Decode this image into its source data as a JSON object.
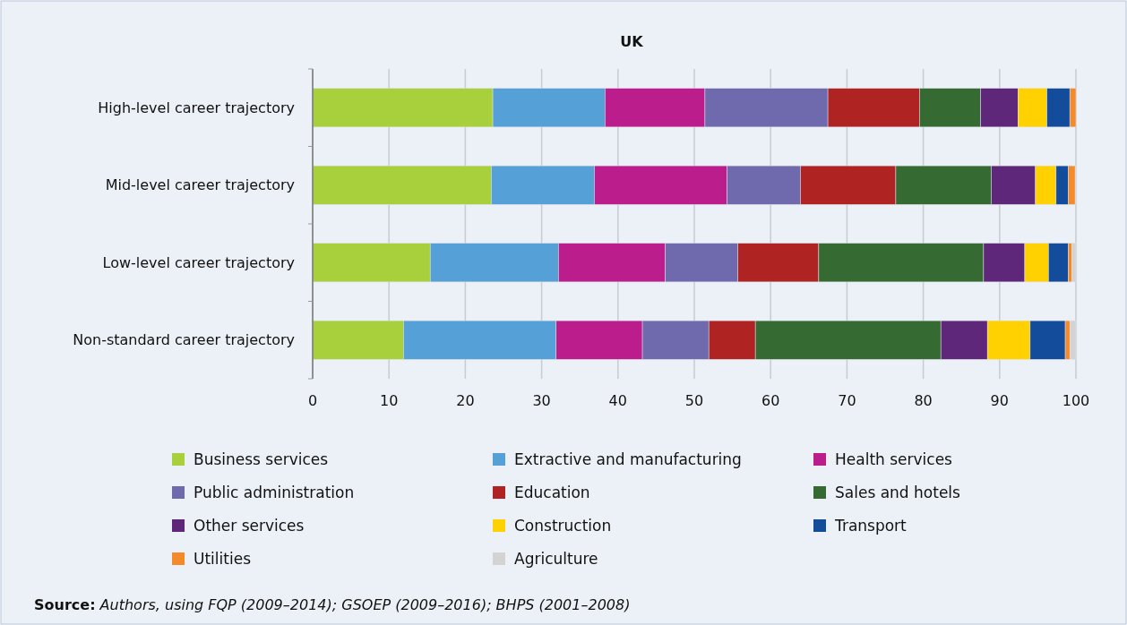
{
  "chart_data": {
    "type": "bar",
    "orientation": "horizontal",
    "stacked": true,
    "title": "UK",
    "categories": [
      "High-level career trajectory",
      "Mid-level career trajectory",
      "Low-level career trajectory",
      "Non-standard career trajectory"
    ],
    "series": [
      {
        "name": "Business services",
        "color": "#a8cf3c",
        "values": [
          23.6,
          23.4,
          15.4,
          11.9
        ]
      },
      {
        "name": "Extractive and manufacturing",
        "color": "#55a0d6",
        "values": [
          14.7,
          13.5,
          16.8,
          20.0
        ]
      },
      {
        "name": "Health services",
        "color": "#bb1e8c",
        "values": [
          13.1,
          17.4,
          14.0,
          11.3
        ]
      },
      {
        "name": "Public administration",
        "color": "#6f69ad",
        "values": [
          16.1,
          9.6,
          9.5,
          8.7
        ]
      },
      {
        "name": "Education",
        "color": "#b02323",
        "values": [
          12.0,
          12.5,
          10.6,
          6.1
        ]
      },
      {
        "name": "Sales and hotels",
        "color": "#366a33",
        "values": [
          8.0,
          12.5,
          21.6,
          24.3
        ]
      },
      {
        "name": "Other services",
        "color": "#5e2779",
        "values": [
          4.9,
          5.8,
          5.4,
          6.1
        ]
      },
      {
        "name": "Construction",
        "color": "#ffd100",
        "values": [
          3.8,
          2.7,
          3.1,
          5.6
        ]
      },
      {
        "name": "Transport",
        "color": "#124c9a",
        "values": [
          3.0,
          1.6,
          2.6,
          4.6
        ]
      },
      {
        "name": "Utilities",
        "color": "#f58a2a",
        "values": [
          0.8,
          0.9,
          0.5,
          0.6
        ]
      },
      {
        "name": "Agriculture",
        "color": "#d3d3d3",
        "values": [
          0,
          0.1,
          0.5,
          0.8
        ]
      }
    ],
    "xlim": [
      0,
      100
    ],
    "xticks": [
      0,
      10,
      20,
      30,
      40,
      50,
      60,
      70,
      80,
      90,
      100
    ],
    "grid": "x",
    "legend": "bottom",
    "annotations": [
      "Source: Authors, using FQP (2009–2014); GSOEP (2009–2016); BHPS (2001–2008)"
    ]
  }
}
